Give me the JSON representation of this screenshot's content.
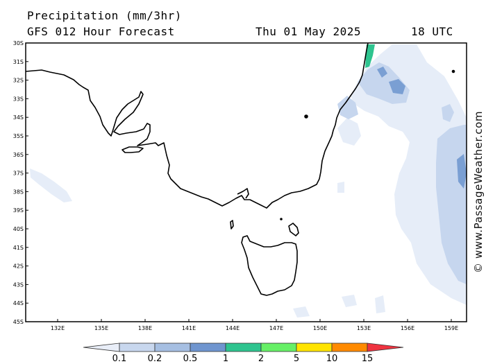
{
  "header": {
    "title": "Precipitation (mm/3hr)",
    "subtitle": "GFS 012 Hour Forecast",
    "date": "Thu 01 May 2025",
    "time": "18 UTC"
  },
  "map": {
    "lat_labels": [
      "30S",
      "31S",
      "32S",
      "33S",
      "34S",
      "35S",
      "36S",
      "37S",
      "38S",
      "39S",
      "40S",
      "41S",
      "42S",
      "43S",
      "44S",
      "45S"
    ],
    "lon_labels": [
      "132E",
      "135E",
      "138E",
      "141E",
      "144E",
      "147E",
      "150E",
      "153E",
      "156E",
      "159E"
    ]
  },
  "legend": {
    "values": [
      "0.1",
      "0.2",
      "0.5",
      "1",
      "2",
      "5",
      "10",
      "15"
    ],
    "colors": [
      "#e9eef8",
      "#c8d7ee",
      "#a6bfe2",
      "#6f95cf",
      "#2ec48f",
      "#66f066",
      "#ffe400",
      "#ff8a00",
      "#ef3340"
    ]
  },
  "colors": {
    "light": "#e6edf8",
    "mid": "#c6d6ee",
    "dark": "#7a9fd3",
    "heavy": "#2ec48f"
  },
  "watermark": "© www.PassageWeather.com"
}
